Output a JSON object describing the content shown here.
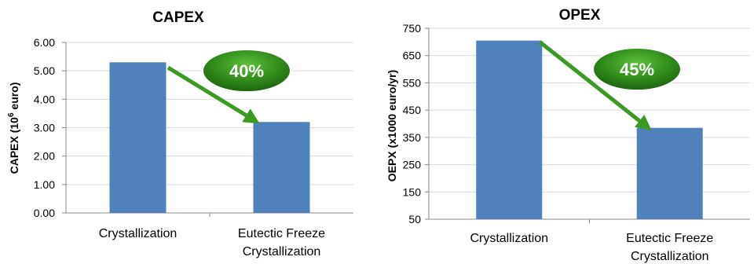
{
  "chart_data": [
    {
      "type": "bar",
      "title": "CAPEX",
      "ylabel": "CAPEX (10",
      "ylabel_sup": "6",
      "ylabel_end": " euro)",
      "categories": [
        "Crystallization",
        "Eutectic Freeze Crystallization"
      ],
      "category_lines": [
        [
          "Crystallization"
        ],
        [
          "Eutectic Freeze",
          "Crystallization"
        ]
      ],
      "values": [
        5.3,
        3.2
      ],
      "ylim": [
        0,
        6
      ],
      "yticks": [
        "0.00",
        "1.00",
        "2.00",
        "3.00",
        "4.00",
        "5.00",
        "6.00"
      ],
      "grid": true,
      "bar_color": "#4f81bd",
      "annotation": {
        "label": "40%",
        "arrow_color": "#3a9a22",
        "badge_color": "#2f8a1a"
      }
    },
    {
      "type": "bar",
      "title": "OPEX",
      "ylabel": "OEPX (x1000 euro/yr)",
      "categories": [
        "Crystallization",
        "Eutectic Freeze Crystallization"
      ],
      "category_lines": [
        [
          "Crystallization"
        ],
        [
          "Eutectic Freeze",
          "Crystallization"
        ]
      ],
      "values": [
        705,
        385
      ],
      "ylim": [
        50,
        750
      ],
      "yticks": [
        "50",
        "150",
        "250",
        "350",
        "450",
        "550",
        "650",
        "750"
      ],
      "grid": true,
      "bar_color": "#4f81bd",
      "annotation": {
        "label": "45%",
        "arrow_color": "#3a9a22",
        "badge_color": "#2f8a1a"
      }
    }
  ]
}
